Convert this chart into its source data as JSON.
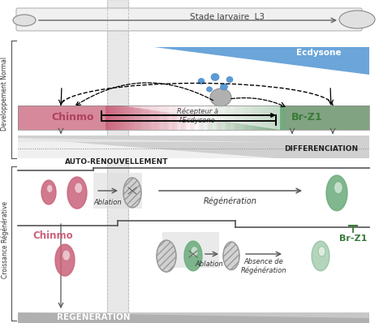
{
  "title": "Stade larvaire  L3",
  "ecdysone_label": "Ecdysone",
  "recepteur_label": "Récepteur à\nl'Ecdysone",
  "chinmo_label": "Chinmo",
  "brz1_label": "Br-Z1",
  "auto_label": "AUTO-RENOUVELLEMENT",
  "diff_label": "DIFFERENCIATION",
  "dev_normal_label": "Developpement Normal",
  "crois_regen_label": "Croissance Régénérative",
  "ablation_label1": "Ablation",
  "regen_label": "Régénération",
  "ablation_label2": "Ablation",
  "absence_label": "Absence de\nRégénération",
  "regeneration_label": "REGENERATION",
  "pink_color": "#c9627a",
  "green_color": "#6aab7a",
  "blue_color": "#5b9bd5",
  "brz1_text_color": "#3a7a3a"
}
